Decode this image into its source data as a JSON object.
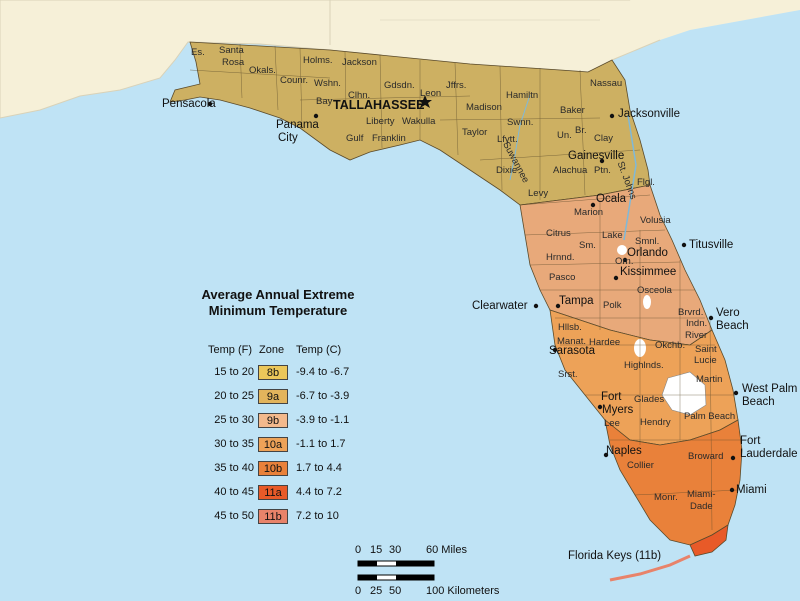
{
  "legend": {
    "title_line1": "Average Annual Extreme",
    "title_line2": "Minimum Temperature",
    "header_temp_f": "Temp (F)",
    "header_zone": "Zone",
    "header_temp_c": "Temp (C)",
    "rows": [
      {
        "temp_f": "15 to 20",
        "zone": "8b",
        "temp_c": "-9.4 to -6.7",
        "color": "#ecc75a"
      },
      {
        "temp_f": "20 to 25",
        "zone": "9a",
        "temp_c": "-6.7 to -3.9",
        "color": "#e2b45c"
      },
      {
        "temp_f": "25 to 30",
        "zone": "9b",
        "temp_c": "-3.9 to -1.1",
        "color": "#f3b98c"
      },
      {
        "temp_f": "30 to 35",
        "zone": "10a",
        "temp_c": "-1.1 to 1.7",
        "color": "#eda258"
      },
      {
        "temp_f": "35 to 40",
        "zone": "10b",
        "temp_c": "1.7 to 4.4",
        "color": "#e9813a"
      },
      {
        "temp_f": "40 to 45",
        "zone": "11a",
        "temp_c": "4.4 to 7.2",
        "color": "#e85a28"
      },
      {
        "temp_f": "45 to 50",
        "zone": "11b",
        "temp_c": "7.2 to 10",
        "color": "#e8836a"
      }
    ]
  },
  "cities": {
    "pensacola": "Pensacola",
    "panama": "Panama",
    "city": "City",
    "tallahassee": "TALLAHASSEE",
    "jacksonville": "Jacksonville",
    "gainesville": "Gainesville",
    "ocala": "Ocala",
    "titusville": "Titusville",
    "orlando": "Orlando",
    "kissimmee": "Kissimmee",
    "clearwater": "Clearwater",
    "tampa": "Tampa",
    "vero": "Vero",
    "beach1": "Beach",
    "sarasota": "Sarasota",
    "west_palm": "West Palm",
    "beach2": "Beach",
    "fort1": "Fort",
    "myers": "Myers",
    "fort2": "Fort",
    "lauderdale": "Lauderdale",
    "naples": "Naples",
    "miami": "Miami",
    "keys": "Florida Keys (11b)"
  },
  "counties": {
    "es": "Es.",
    "santa": "Santa",
    "rosa": "Rosa",
    "okals": "Okals.",
    "holms": "Holms.",
    "jackson": "Jackson",
    "counr": "Counr.",
    "wshn": "Wshn.",
    "gdsdn": "Gdsdn.",
    "leon": "Leon",
    "jffrs": "Jffrs.",
    "hamiltn": "Hamiltn",
    "nassau": "Nassau",
    "bay": "Bay",
    "clhn": "Clhn.",
    "madison": "Madison",
    "baker": "Baker",
    "liberty": "Liberty",
    "wakulla": "Wakulla",
    "gulf": "Gulf",
    "franklin": "Franklin",
    "taylor": "Taylor",
    "swnn": "Swnn.",
    "un": "Un.",
    "br": "Br.",
    "clay": "Clay",
    "lfytt": "Lfytt.",
    "dixie": "Dixie",
    "alachua": "Alachua",
    "ptn": "Ptn.",
    "levy": "Levy",
    "marion": "Marion",
    "flgl": "Flgl.",
    "volusia": "Volusia",
    "citrus": "Citrus",
    "lake": "Lake",
    "sm": "Sm.",
    "smnl": "Smnl.",
    "hrnnd": "Hrnnd.",
    "orn": "Orn.",
    "pasco": "Pasco",
    "osceola": "Osceola",
    "polk": "Polk",
    "brvrd": "Brvrd.",
    "indn": "Indn.",
    "river": "River",
    "hllsb": "Hllsb.",
    "manat": "Manat.",
    "hardee": "Hardee",
    "okchb": "Okchb.",
    "saint": "Saint",
    "lucie": "Lucie",
    "srst": "Srst.",
    "highlnds": "Highlnds.",
    "martin": "Martin",
    "glades": "Glades",
    "palm_beach": "Palm Beach",
    "lee": "Lee",
    "hendry": "Hendry",
    "broward": "Broward",
    "collier": "Collier",
    "monr": "Monr.",
    "miami": "Miami-",
    "dade": "Dade",
    "suwannee": "Suwannee",
    "st_johns": "St. Johns"
  },
  "scale": {
    "miles_ticks": [
      "0",
      "15",
      "30",
      "60 Miles"
    ],
    "km_ticks": [
      "0",
      "25",
      "50",
      "100 Kilometers"
    ]
  }
}
